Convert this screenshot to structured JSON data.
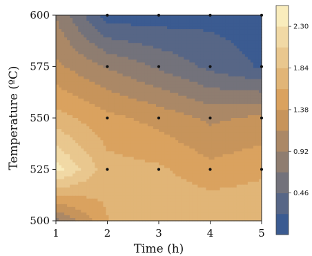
{
  "chart_data": {
    "type": "contour",
    "title": "",
    "xlabel": "Time (h)",
    "ylabel": "Temperature (ºC)",
    "x": [
      1,
      2,
      3,
      4,
      5
    ],
    "y": [
      500,
      525,
      550,
      575,
      600
    ],
    "xlim": [
      1,
      5
    ],
    "ylim": [
      500,
      600
    ],
    "x_ticks": [
      "1",
      "2",
      "3",
      "4",
      "5"
    ],
    "y_ticks": [
      "500",
      "525",
      "550",
      "575",
      "600"
    ],
    "z": [
      [
        0.85,
        1.6,
        1.84,
        1.84,
        1.84
      ],
      [
        2.4,
        1.7,
        1.65,
        1.45,
        1.55
      ],
      [
        1.7,
        1.45,
        1.3,
        1.1,
        1.2
      ],
      [
        1.2,
        0.9,
        0.65,
        0.4,
        0.2
      ],
      [
        0.9,
        0.1,
        0.1,
        0.15,
        0.1
      ]
    ],
    "sample_points": [
      [
        2,
        600
      ],
      [
        3,
        600
      ],
      [
        4,
        600
      ],
      [
        5,
        600
      ],
      [
        2,
        575
      ],
      [
        3,
        575
      ],
      [
        4,
        575
      ],
      [
        5,
        575
      ],
      [
        2,
        550
      ],
      [
        3,
        550
      ],
      [
        4,
        550
      ],
      [
        5,
        550
      ],
      [
        2,
        525
      ],
      [
        3,
        525
      ],
      [
        4,
        525
      ],
      [
        5,
        525
      ]
    ],
    "colorbar": {
      "ticks": [
        "2.30",
        "1.84",
        "1.38",
        "0.92",
        "0.46"
      ],
      "tick_values": [
        2.3,
        1.84,
        1.38,
        0.92,
        0.46
      ],
      "range": [
        0.0,
        2.53
      ],
      "levels": 11
    },
    "colors": {
      "low": "#2d5596",
      "mid": "#d69a55",
      "high": "#fdf5c8",
      "contour_line": "#5a4a3a"
    },
    "grid": false,
    "legend": "colorbar-right"
  }
}
